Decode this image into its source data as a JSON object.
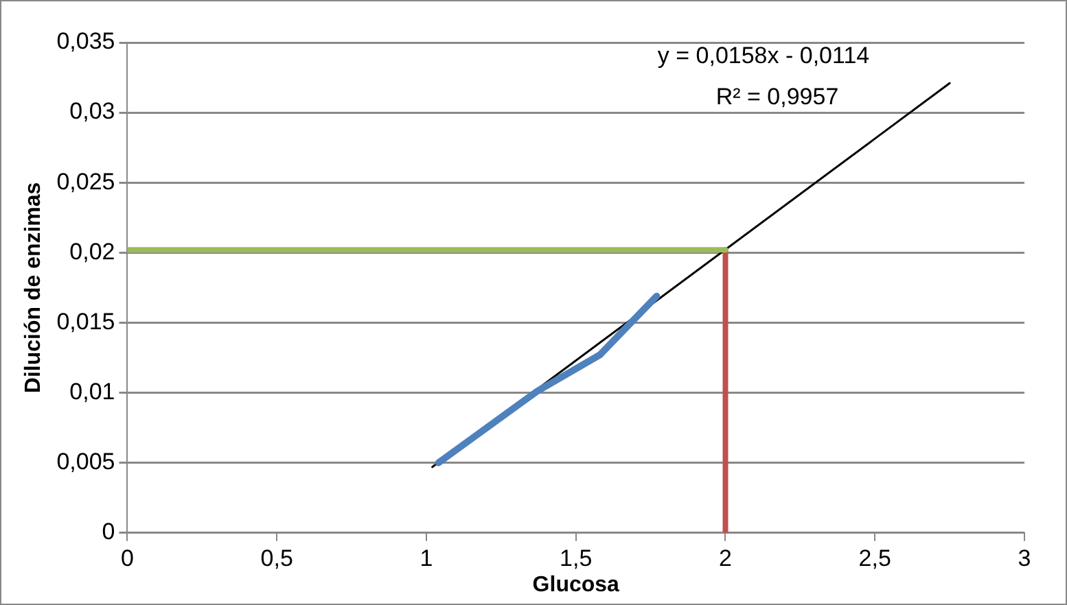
{
  "chart_data": {
    "type": "line",
    "xlabel": "Glucosa",
    "ylabel": "Dilución de enzimas",
    "xlim": [
      0,
      3
    ],
    "xticks": [
      0,
      {
        "value": 0.5,
        "label": "0,5"
      },
      1,
      {
        "value": 1.5,
        "label": "1,5"
      },
      2,
      {
        "value": 2.5,
        "label": "2,5"
      },
      3
    ],
    "ylim": [
      0,
      0.035
    ],
    "yticks": [
      0,
      {
        "value": 0.005,
        "label": "0,005"
      },
      {
        "value": 0.01,
        "label": "0,01"
      },
      {
        "value": 0.015,
        "label": "0,015"
      },
      {
        "value": 0.02,
        "label": "0,02"
      },
      {
        "value": 0.025,
        "label": "0,025"
      },
      {
        "value": 0.03,
        "label": "0,03"
      },
      {
        "value": 0.035,
        "label": "0,035"
      }
    ],
    "grid": "y",
    "legend": false,
    "marker": "none",
    "line_style": "solid",
    "series": [
      {
        "color": "#4f81bd",
        "x": [
          1.04,
          1.37,
          1.58,
          1.77
        ],
        "values": [
          0.005,
          0.0101,
          0.0127,
          0.0169
        ]
      },
      {
        "color": "#9bbb59",
        "x": [
          0,
          2
        ],
        "values": [
          0.0202,
          0.0202
        ]
      },
      {
        "color": "#c0504d",
        "x": [
          2,
          2
        ],
        "values": [
          0,
          0.0202
        ]
      },
      {
        "color": "#000000",
        "x": [
          1.02,
          2.75
        ],
        "values": [
          0.0047,
          0.0321
        ]
      }
    ],
    "annotations": [
      "y = 0,0158x - 0,0114",
      "R² = 0,9957"
    ]
  }
}
